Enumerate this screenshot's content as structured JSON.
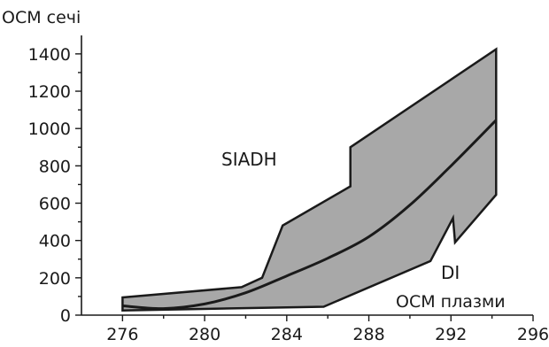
{
  "chart_data": {
    "type": "area",
    "ylabel": "ОСМ сечі",
    "xlabel": "ОСМ плазми",
    "xlim": [
      274,
      296
    ],
    "ylim": [
      0,
      1400
    ],
    "x_ticks": [
      276,
      280,
      284,
      288,
      292,
      296
    ],
    "y_ticks": [
      0,
      200,
      400,
      600,
      800,
      1000,
      1200,
      1400
    ],
    "annotations": [
      "SIADH",
      "DI"
    ],
    "band_fill_color": "#a8a8a8",
    "line_color": "#1a1a1a",
    "band_upper": {
      "x": [
        276,
        281.8,
        282.8,
        283.8,
        287.1,
        287.1,
        294.2
      ],
      "y": [
        95,
        150,
        200,
        480,
        690,
        900,
        1425
      ]
    },
    "band_lower": {
      "x": [
        294.2,
        294.2,
        292.2,
        292.1,
        291.0,
        285.8,
        276
      ],
      "y": [
        930,
        645,
        390,
        520,
        290,
        45,
        25
      ]
    },
    "series": [
      {
        "x": [
          276,
          278,
          280,
          282,
          284,
          286,
          288,
          290,
          292,
          294.2
        ],
        "y": [
          50,
          35,
          60,
          120,
          210,
          305,
          420,
          590,
          800,
          1045
        ]
      }
    ]
  }
}
